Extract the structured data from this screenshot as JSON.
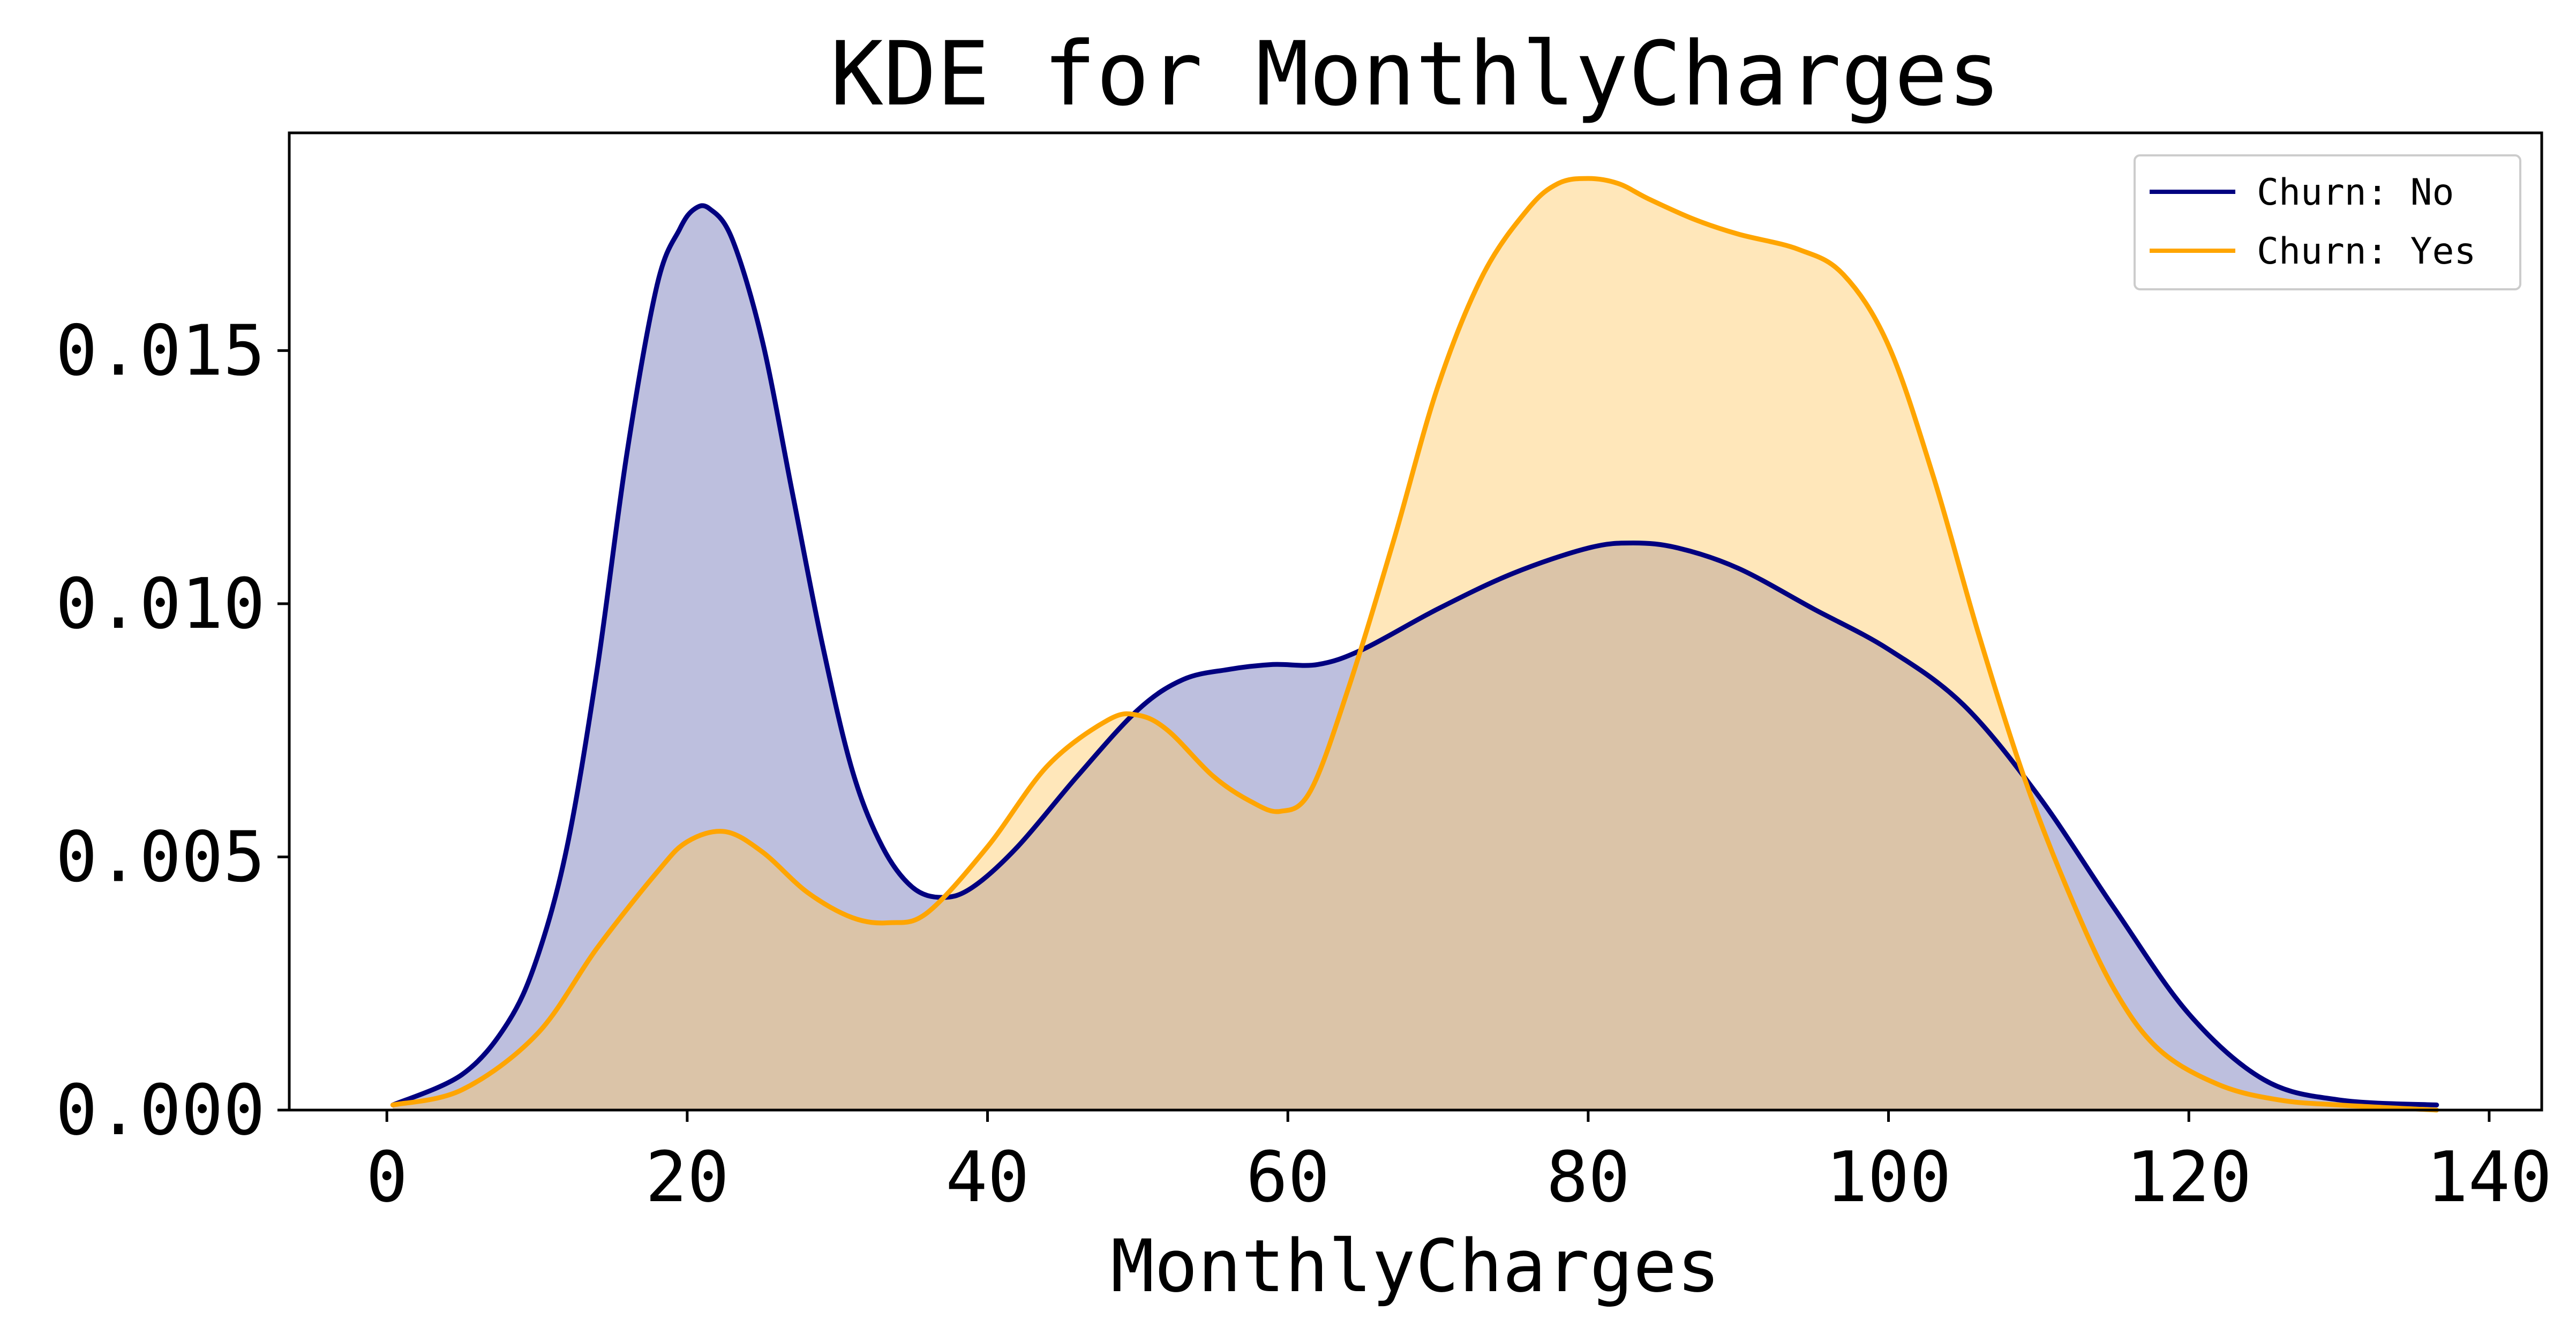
{
  "chart_data": {
    "type": "area",
    "title": "KDE for MonthlyCharges",
    "xlabel": "MonthlyCharges",
    "ylabel": "",
    "xlim": [
      -6.5,
      143.5
    ],
    "ylim": [
      0,
      0.0193
    ],
    "x_ticks": [
      0,
      20,
      40,
      60,
      80,
      100,
      120,
      140
    ],
    "x_tick_labels": [
      "0",
      "20",
      "40",
      "60",
      "80",
      "100",
      "120",
      "140"
    ],
    "y_ticks": [
      0.0,
      0.005,
      0.01,
      0.015
    ],
    "y_tick_labels": [
      "0.000",
      "0.005",
      "0.010",
      "0.015"
    ],
    "grid": false,
    "legend": {
      "position": "top-right",
      "entries": [
        "Churn: No",
        "Churn: Yes"
      ]
    },
    "series": [
      {
        "name": "Churn: No",
        "color": "#000080",
        "fill_color": "#7b7fbd",
        "fill_opacity": 0.5,
        "x": [
          0.4,
          5,
          8,
          10,
          12,
          14,
          16,
          18,
          19.5,
          20.5,
          21.5,
          23,
          25,
          27,
          29,
          31,
          33,
          35,
          37,
          39,
          42,
          46,
          50,
          53,
          56,
          59,
          62,
          65,
          70,
          75,
          80,
          83,
          86,
          90,
          95,
          100,
          105,
          110,
          115,
          120,
          125,
          130,
          136.5
        ],
        "y": [
          0.0001,
          0.0007,
          0.0017,
          0.003,
          0.0052,
          0.0087,
          0.013,
          0.0163,
          0.0174,
          0.0178,
          0.0178,
          0.0172,
          0.0152,
          0.0122,
          0.0092,
          0.0067,
          0.0052,
          0.0044,
          0.0042,
          0.0044,
          0.0052,
          0.0066,
          0.0079,
          0.0085,
          0.0087,
          0.0088,
          0.0088,
          0.0091,
          0.0099,
          0.0106,
          0.0111,
          0.0112,
          0.0111,
          0.0107,
          0.0099,
          0.0091,
          0.008,
          0.0062,
          0.004,
          0.0019,
          0.0006,
          0.0002,
          0.0001
        ]
      },
      {
        "name": "Churn: Yes",
        "color": "#ffa500",
        "fill_color": "#ffc966",
        "fill_opacity": 0.45,
        "x": [
          0.4,
          5,
          10,
          14,
          18,
          20,
          22.5,
          25,
          28,
          31,
          33.5,
          36,
          40,
          44,
          48,
          50,
          52,
          55,
          57.5,
          59.5,
          61.5,
          64,
          67,
          70,
          73,
          76,
          78,
          80,
          82,
          84,
          87,
          90,
          94,
          97,
          100,
          103,
          106,
          109,
          112,
          115,
          118,
          122,
          126,
          130,
          136.5
        ],
        "y": [
          0.0001,
          0.0004,
          0.0015,
          0.0032,
          0.0047,
          0.0053,
          0.0055,
          0.0051,
          0.0043,
          0.0038,
          0.0037,
          0.0039,
          0.0052,
          0.0068,
          0.0077,
          0.0078,
          0.0075,
          0.0066,
          0.0061,
          0.0059,
          0.0063,
          0.0083,
          0.0112,
          0.0143,
          0.0165,
          0.0178,
          0.0183,
          0.0184,
          0.0183,
          0.018,
          0.0176,
          0.0173,
          0.017,
          0.0165,
          0.0151,
          0.0125,
          0.0094,
          0.0066,
          0.0043,
          0.0024,
          0.0012,
          0.0005,
          0.0002,
          0.0001,
          0.0
        ]
      }
    ]
  }
}
